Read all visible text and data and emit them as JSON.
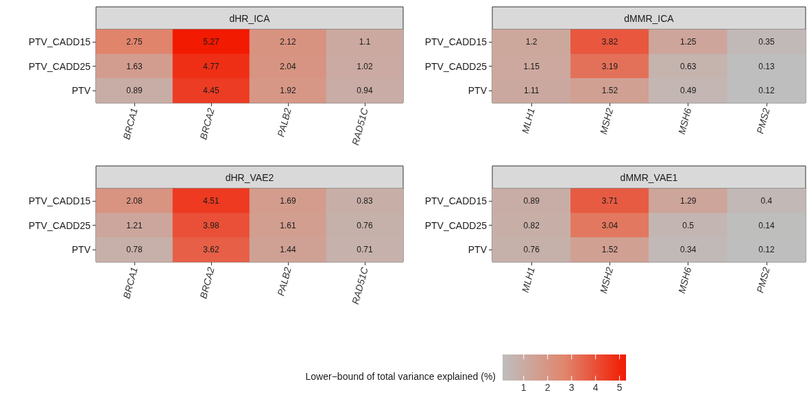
{
  "chart_data": [
    {
      "type": "heatmap",
      "title": "dHR_ICA",
      "categories": [
        "BRCA1",
        "BRCA2",
        "PALB2",
        "RAD51C"
      ],
      "y_categories": [
        "PTV_CADD15",
        "PTV_CADD25",
        "PTV"
      ],
      "cells": [
        [
          2.75,
          5.27,
          2.12,
          1.1
        ],
        [
          1.63,
          4.77,
          2.04,
          1.02
        ],
        [
          0.89,
          4.45,
          1.92,
          0.94
        ]
      ],
      "data_labels": true
    },
    {
      "type": "heatmap",
      "title": "dMMR_ICA",
      "categories": [
        "MLH1",
        "MSH2",
        "MSH6",
        "PMS2"
      ],
      "y_categories": [
        "PTV_CADD15",
        "PTV_CADD25",
        "PTV"
      ],
      "cells": [
        [
          1.2,
          3.82,
          1.25,
          0.35
        ],
        [
          1.15,
          3.19,
          0.63,
          0.13
        ],
        [
          1.11,
          1.52,
          0.49,
          0.12
        ]
      ],
      "data_labels": true
    },
    {
      "type": "heatmap",
      "title": "dHR_VAE2",
      "categories": [
        "BRCA1",
        "BRCA2",
        "PALB2",
        "RAD51C"
      ],
      "y_categories": [
        "PTV_CADD15",
        "PTV_CADD25",
        "PTV"
      ],
      "cells": [
        [
          2.08,
          4.51,
          1.69,
          0.83
        ],
        [
          1.21,
          3.98,
          1.61,
          0.76
        ],
        [
          0.78,
          3.62,
          1.44,
          0.71
        ]
      ],
      "data_labels": true
    },
    {
      "type": "heatmap",
      "title": "dMMR_VAE1",
      "categories": [
        "MLH1",
        "MSH2",
        "MSH6",
        "PMS2"
      ],
      "y_categories": [
        "PTV_CADD15",
        "PTV_CADD25",
        "PTV"
      ],
      "cells": [
        [
          0.89,
          3.71,
          1.29,
          0.4
        ],
        [
          0.82,
          3.04,
          0.5,
          0.14
        ],
        [
          0.76,
          1.52,
          0.34,
          0.12
        ]
      ],
      "clim": [
        0.12,
        5.27
      ],
      "data_labels": true,
      "clabel": "Lower−bound of total variance explained (%)",
      "cticks": [
        1,
        2,
        3,
        4,
        5
      ]
    }
  ]
}
